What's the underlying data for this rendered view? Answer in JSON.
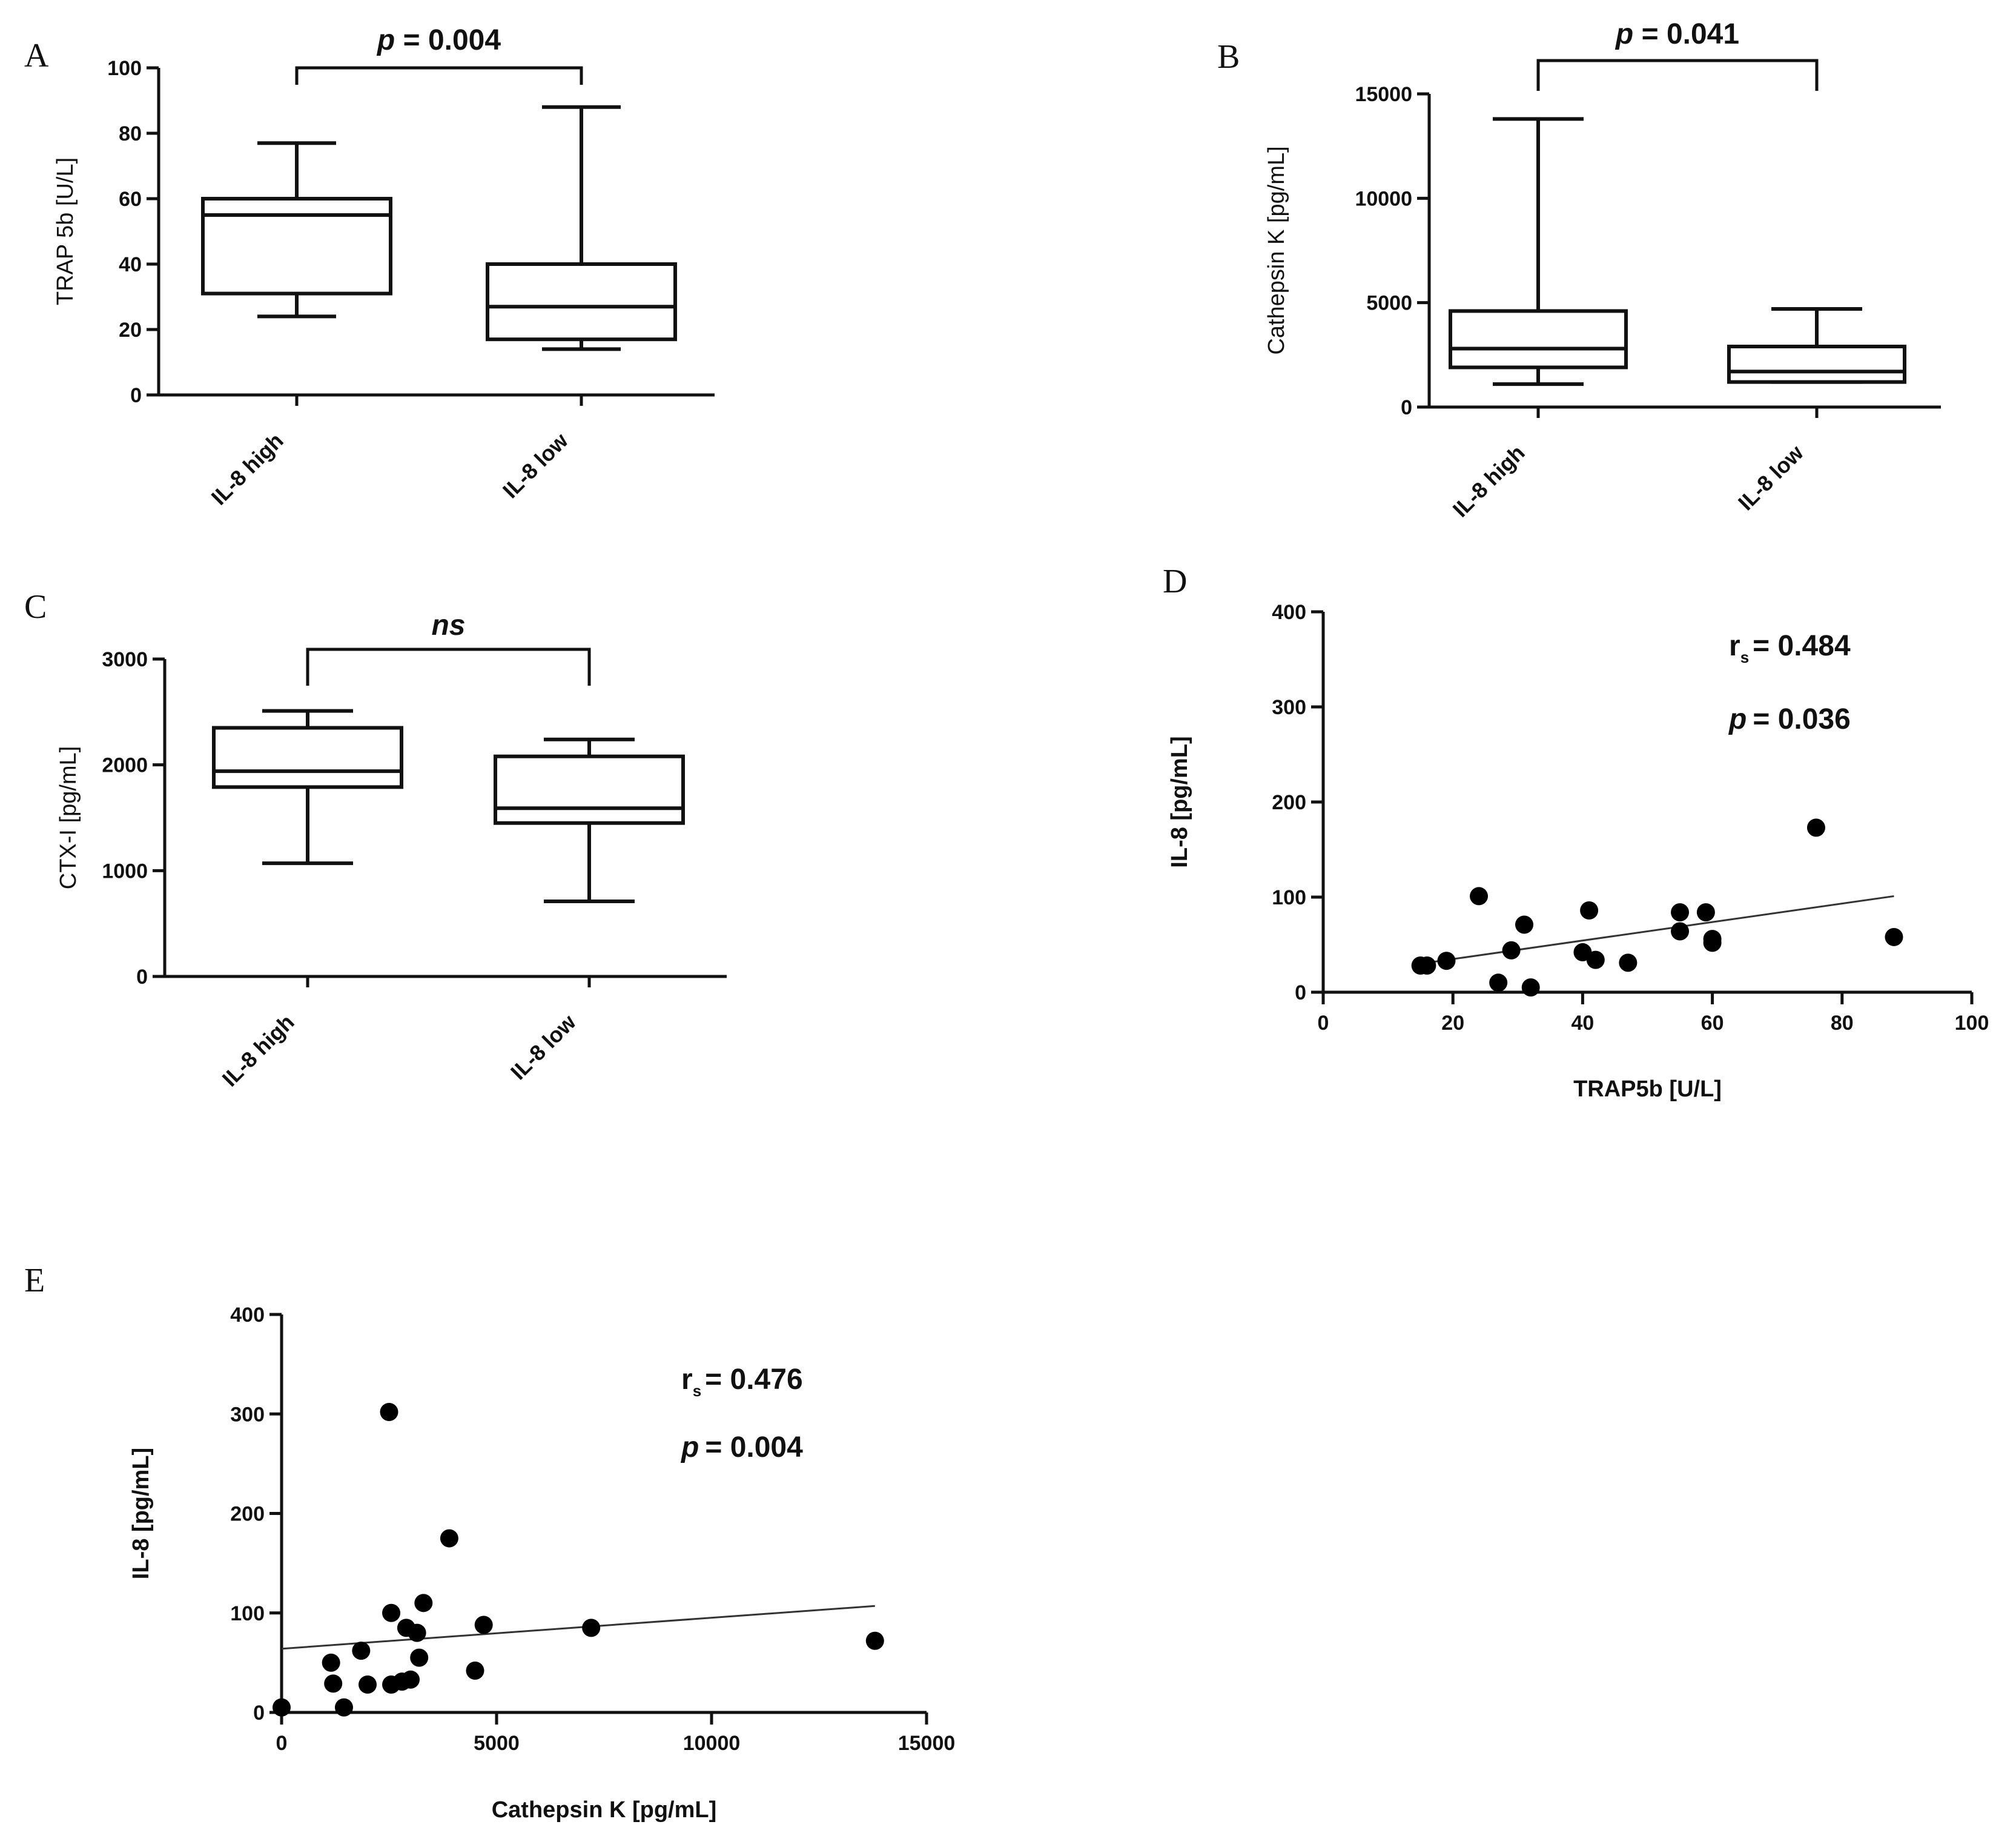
{
  "chart_data": [
    {
      "id": "A",
      "type": "box",
      "panel_label": "A",
      "ylabel": "TRAP 5b [U/L]",
      "ylim": [
        0,
        100
      ],
      "yticks": [
        0,
        20,
        40,
        60,
        80,
        100
      ],
      "categories": [
        "IL-8 high",
        "IL-8 low"
      ],
      "boxes": [
        {
          "name": "IL-8 high",
          "min": 24,
          "q1": 31,
          "median": 55,
          "q3": 60,
          "max": 77
        },
        {
          "name": "IL-8 low",
          "min": 14,
          "q1": 17,
          "median": 27,
          "q3": 40,
          "max": 88
        }
      ],
      "significance": {
        "p_symbol": "p",
        "text": " = 0.004"
      }
    },
    {
      "id": "B",
      "type": "box",
      "panel_label": "B",
      "ylabel": "Cathepsin K [pg/mL]",
      "ylim": [
        0,
        15000
      ],
      "yticks": [
        0,
        5000,
        10000,
        15000
      ],
      "categories": [
        "IL-8 high",
        "IL-8 low"
      ],
      "boxes": [
        {
          "name": "IL-8 high",
          "min": 1100,
          "q1": 1900,
          "median": 2800,
          "q3": 4600,
          "max": 13800
        },
        {
          "name": "IL-8 low",
          "min": 1200,
          "q1": 1200,
          "median": 1700,
          "q3": 2900,
          "max": 4700
        }
      ],
      "significance": {
        "p_symbol": "p",
        "text": " = 0.041"
      }
    },
    {
      "id": "C",
      "type": "box",
      "panel_label": "C",
      "ylabel": "CTX-I [pg/mL]",
      "ylim": [
        0,
        3000
      ],
      "yticks": [
        0,
        1000,
        2000,
        3000
      ],
      "categories": [
        "IL-8 high",
        "IL-8 low"
      ],
      "boxes": [
        {
          "name": "IL-8 high",
          "min": 1070,
          "q1": 1790,
          "median": 1940,
          "q3": 2350,
          "max": 2510
        },
        {
          "name": "IL-8 low",
          "min": 710,
          "q1": 1450,
          "median": 1590,
          "q3": 2080,
          "max": 2240
        }
      ],
      "significance": {
        "text": "ns"
      }
    },
    {
      "id": "D",
      "type": "scatter",
      "panel_label": "D",
      "xlabel": "TRAP5b [U/L]",
      "ylabel": "IL-8 [pg/mL]",
      "xlim": [
        0,
        100
      ],
      "ylim": [
        0,
        400
      ],
      "xticks": [
        0,
        20,
        40,
        60,
        80,
        100
      ],
      "yticks": [
        0,
        100,
        200,
        300,
        400
      ],
      "points": [
        [
          15,
          28
        ],
        [
          16,
          28
        ],
        [
          19,
          33
        ],
        [
          24,
          101
        ],
        [
          27,
          10
        ],
        [
          29,
          44
        ],
        [
          31,
          71
        ],
        [
          32,
          5
        ],
        [
          40,
          42
        ],
        [
          41,
          86
        ],
        [
          42,
          34
        ],
        [
          47,
          31
        ],
        [
          55,
          64
        ],
        [
          55,
          84
        ],
        [
          59,
          84
        ],
        [
          60,
          52
        ],
        [
          60,
          56
        ],
        [
          76,
          173
        ],
        [
          88,
          58
        ]
      ],
      "fit_line": [
        [
          15,
          30
        ],
        [
          88,
          101
        ]
      ],
      "stat_r_symbol": "r",
      "stat_r_sub": "s",
      "stat_r_value": "= 0.484",
      "stat_p_symbol": "p",
      "stat_p_value": "= 0.036"
    },
    {
      "id": "E",
      "type": "scatter",
      "panel_label": "E",
      "xlabel": "Cathepsin K [pg/mL]",
      "ylabel": "IL-8 [pg/mL]",
      "xlim": [
        0,
        15000
      ],
      "ylim": [
        0,
        400
      ],
      "xticks": [
        0,
        5000,
        10000,
        15000
      ],
      "yticks": [
        0,
        100,
        200,
        300,
        400
      ],
      "points": [
        [
          0,
          5
        ],
        [
          1150,
          50
        ],
        [
          1200,
          29
        ],
        [
          1450,
          5
        ],
        [
          1850,
          62
        ],
        [
          2000,
          28
        ],
        [
          2500,
          302
        ],
        [
          2550,
          100
        ],
        [
          2550,
          28
        ],
        [
          2800,
          31
        ],
        [
          2900,
          85
        ],
        [
          3000,
          33
        ],
        [
          3150,
          80
        ],
        [
          3200,
          55
        ],
        [
          3300,
          110
        ],
        [
          3900,
          175
        ],
        [
          4500,
          42
        ],
        [
          4700,
          88
        ],
        [
          7200,
          85
        ],
        [
          13800,
          72
        ]
      ],
      "fit_line": [
        [
          0,
          64
        ],
        [
          13800,
          107
        ]
      ],
      "stat_r_symbol": "r",
      "stat_r_sub": "s",
      "stat_r_value": "= 0.476",
      "stat_p_symbol": "p",
      "stat_p_value": "= 0.004"
    }
  ]
}
